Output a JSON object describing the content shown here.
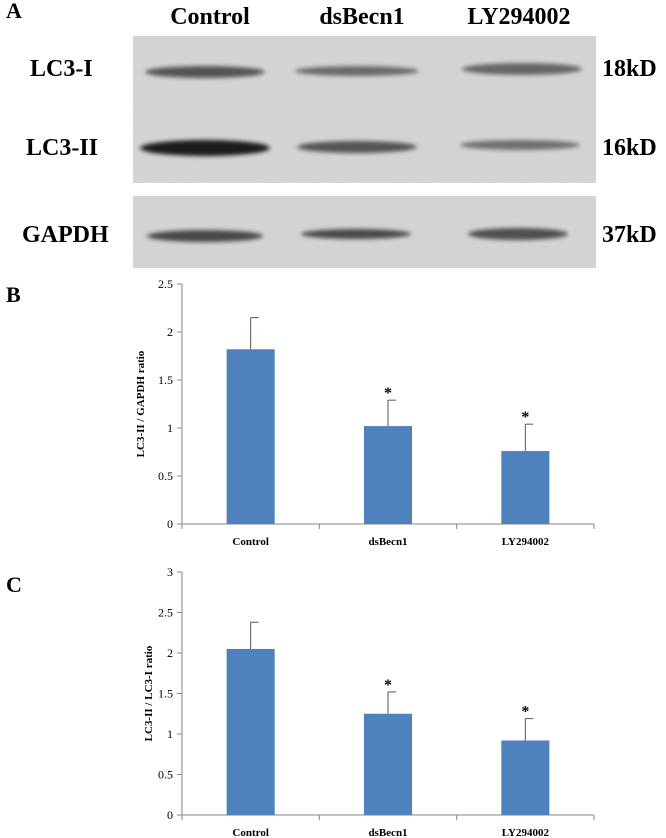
{
  "panels": {
    "a": "A",
    "b": "B",
    "c": "C"
  },
  "blot": {
    "lanes": [
      "Control",
      "dsBecn1",
      "LY294002"
    ],
    "rows": [
      {
        "label": "LC3-I",
        "mw": "18kD"
      },
      {
        "label": "LC3-II",
        "mw": "16kD"
      },
      {
        "label": "GAPDH",
        "mw": "37kD"
      }
    ]
  },
  "chart_data": [
    {
      "type": "bar",
      "panel": "B",
      "categories": [
        "Control",
        "dsBecn1",
        "LY294002"
      ],
      "values": [
        1.82,
        1.02,
        0.76
      ],
      "errors": [
        0.33,
        0.27,
        0.28
      ],
      "significance": [
        "",
        "*",
        "*"
      ],
      "ylabel": "LC3-II / GAPDH ratio",
      "ylim": [
        0,
        2.5
      ],
      "yticks": [
        0,
        0.5,
        1,
        1.5,
        2,
        2.5
      ],
      "ytick_labels": [
        "0",
        "0.5",
        "1",
        "1.5",
        "2",
        "2.5"
      ],
      "bar_color": "#4f81bd",
      "grid": false
    },
    {
      "type": "bar",
      "panel": "C",
      "categories": [
        "Control",
        "dsBecn1",
        "LY294002"
      ],
      "values": [
        2.05,
        1.25,
        0.92
      ],
      "errors": [
        0.33,
        0.27,
        0.27
      ],
      "significance": [
        "",
        "*",
        "*"
      ],
      "ylabel": "LC3-II / LC3-I ratio",
      "ylim": [
        0,
        3
      ],
      "yticks": [
        0,
        0.5,
        1,
        1.5,
        2,
        2.5,
        3
      ],
      "ytick_labels": [
        "0",
        "0.5",
        "1",
        "1.5",
        "2",
        "2.5",
        "3"
      ],
      "bar_color": "#4f81bd",
      "grid": false
    }
  ]
}
